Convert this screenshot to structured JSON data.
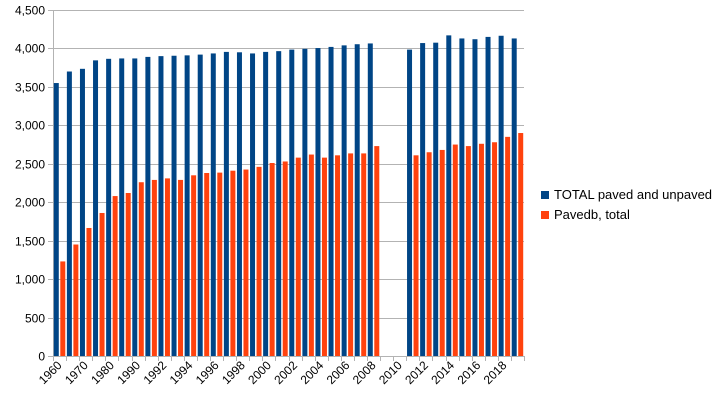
{
  "chart_data": {
    "type": "bar",
    "title": "",
    "xlabel": "",
    "ylabel": "",
    "ylim": [
      0,
      4500
    ],
    "yticks": [
      0,
      500,
      1000,
      1500,
      2000,
      2500,
      3000,
      3500,
      4000,
      4500
    ],
    "ytick_labels": [
      "0",
      "500",
      "1,000",
      "1,500",
      "2,000",
      "2,500",
      "3,000",
      "3,500",
      "4,000",
      "4,500"
    ],
    "categories": [
      "1960",
      "1965",
      "1970",
      "1975",
      "1980",
      "1985",
      "1990",
      "1991",
      "1992",
      "1993",
      "1994",
      "1995",
      "1996",
      "1997",
      "1998",
      "1999",
      "2000",
      "2001",
      "2002",
      "2003",
      "2004",
      "2005",
      "2006",
      "2007",
      "2008",
      "2009",
      "2010",
      "2011",
      "2012",
      "2013",
      "2014",
      "2015",
      "2016",
      "2017",
      "2018",
      "2019"
    ],
    "xtick_labels": [
      "1960",
      "1970",
      "1980",
      "1990",
      "1992",
      "1994",
      "1996",
      "1998",
      "2000",
      "2002",
      "2004",
      "2006",
      "2008",
      "2010",
      "2012",
      "2014",
      "2016",
      "2018"
    ],
    "series": [
      {
        "name": "TOTAL paved and unpaved",
        "color": "#004586",
        "values": [
          3550,
          3700,
          3735,
          3845,
          3865,
          3870,
          3870,
          3890,
          3900,
          3905,
          3910,
          3920,
          3935,
          3955,
          3950,
          3935,
          3955,
          3965,
          3985,
          3995,
          4005,
          4020,
          4040,
          4055,
          4065,
          null,
          null,
          3985,
          4070,
          4075,
          4170,
          4130,
          4120,
          4150,
          4165,
          4130
        ]
      },
      {
        "name": "Pavedb, total",
        "color": "#ff420e",
        "values": [
          1230,
          1450,
          1665,
          1860,
          2080,
          2120,
          2260,
          2290,
          2310,
          2290,
          2350,
          2380,
          2385,
          2410,
          2425,
          2460,
          2510,
          2530,
          2580,
          2620,
          2580,
          2610,
          2635,
          2635,
          2730,
          null,
          null,
          2610,
          2650,
          2680,
          2750,
          2730,
          2760,
          2780,
          2850,
          2900
        ]
      }
    ],
    "legend": "right"
  }
}
